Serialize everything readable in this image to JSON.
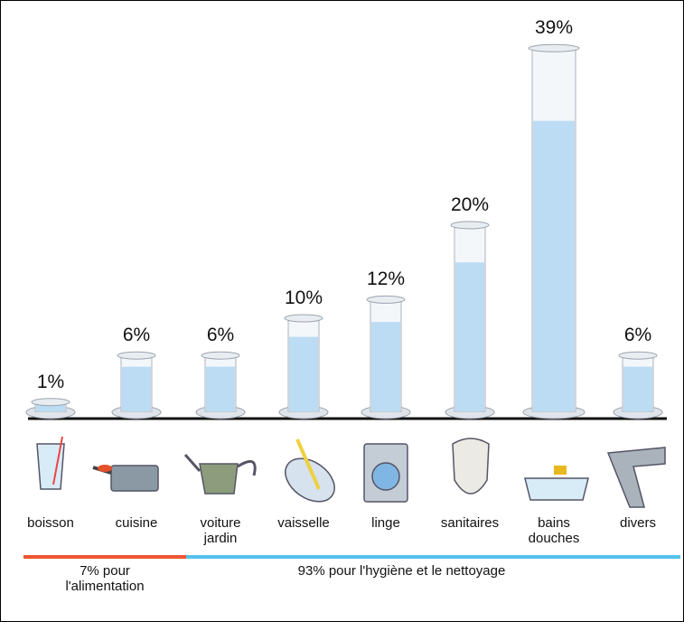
{
  "chart_data": {
    "type": "bar",
    "categories": [
      "boisson",
      "cuisine",
      "voiture jardin",
      "vaisselle",
      "linge",
      "sanitaires",
      "bains douches",
      "divers"
    ],
    "values": [
      1,
      6,
      6,
      10,
      12,
      20,
      39,
      6
    ],
    "value_labels": [
      "1%",
      "6%",
      "6%",
      "10%",
      "12%",
      "20%",
      "39%",
      "6%"
    ],
    "color": "#bcdcf3",
    "groups": [
      {
        "label": "7% pour l'alimentation",
        "color": "#ee5533"
      },
      {
        "label": "93% pour l'hygiène et le nettoyage",
        "color": "#55c3ee"
      }
    ]
  }
}
